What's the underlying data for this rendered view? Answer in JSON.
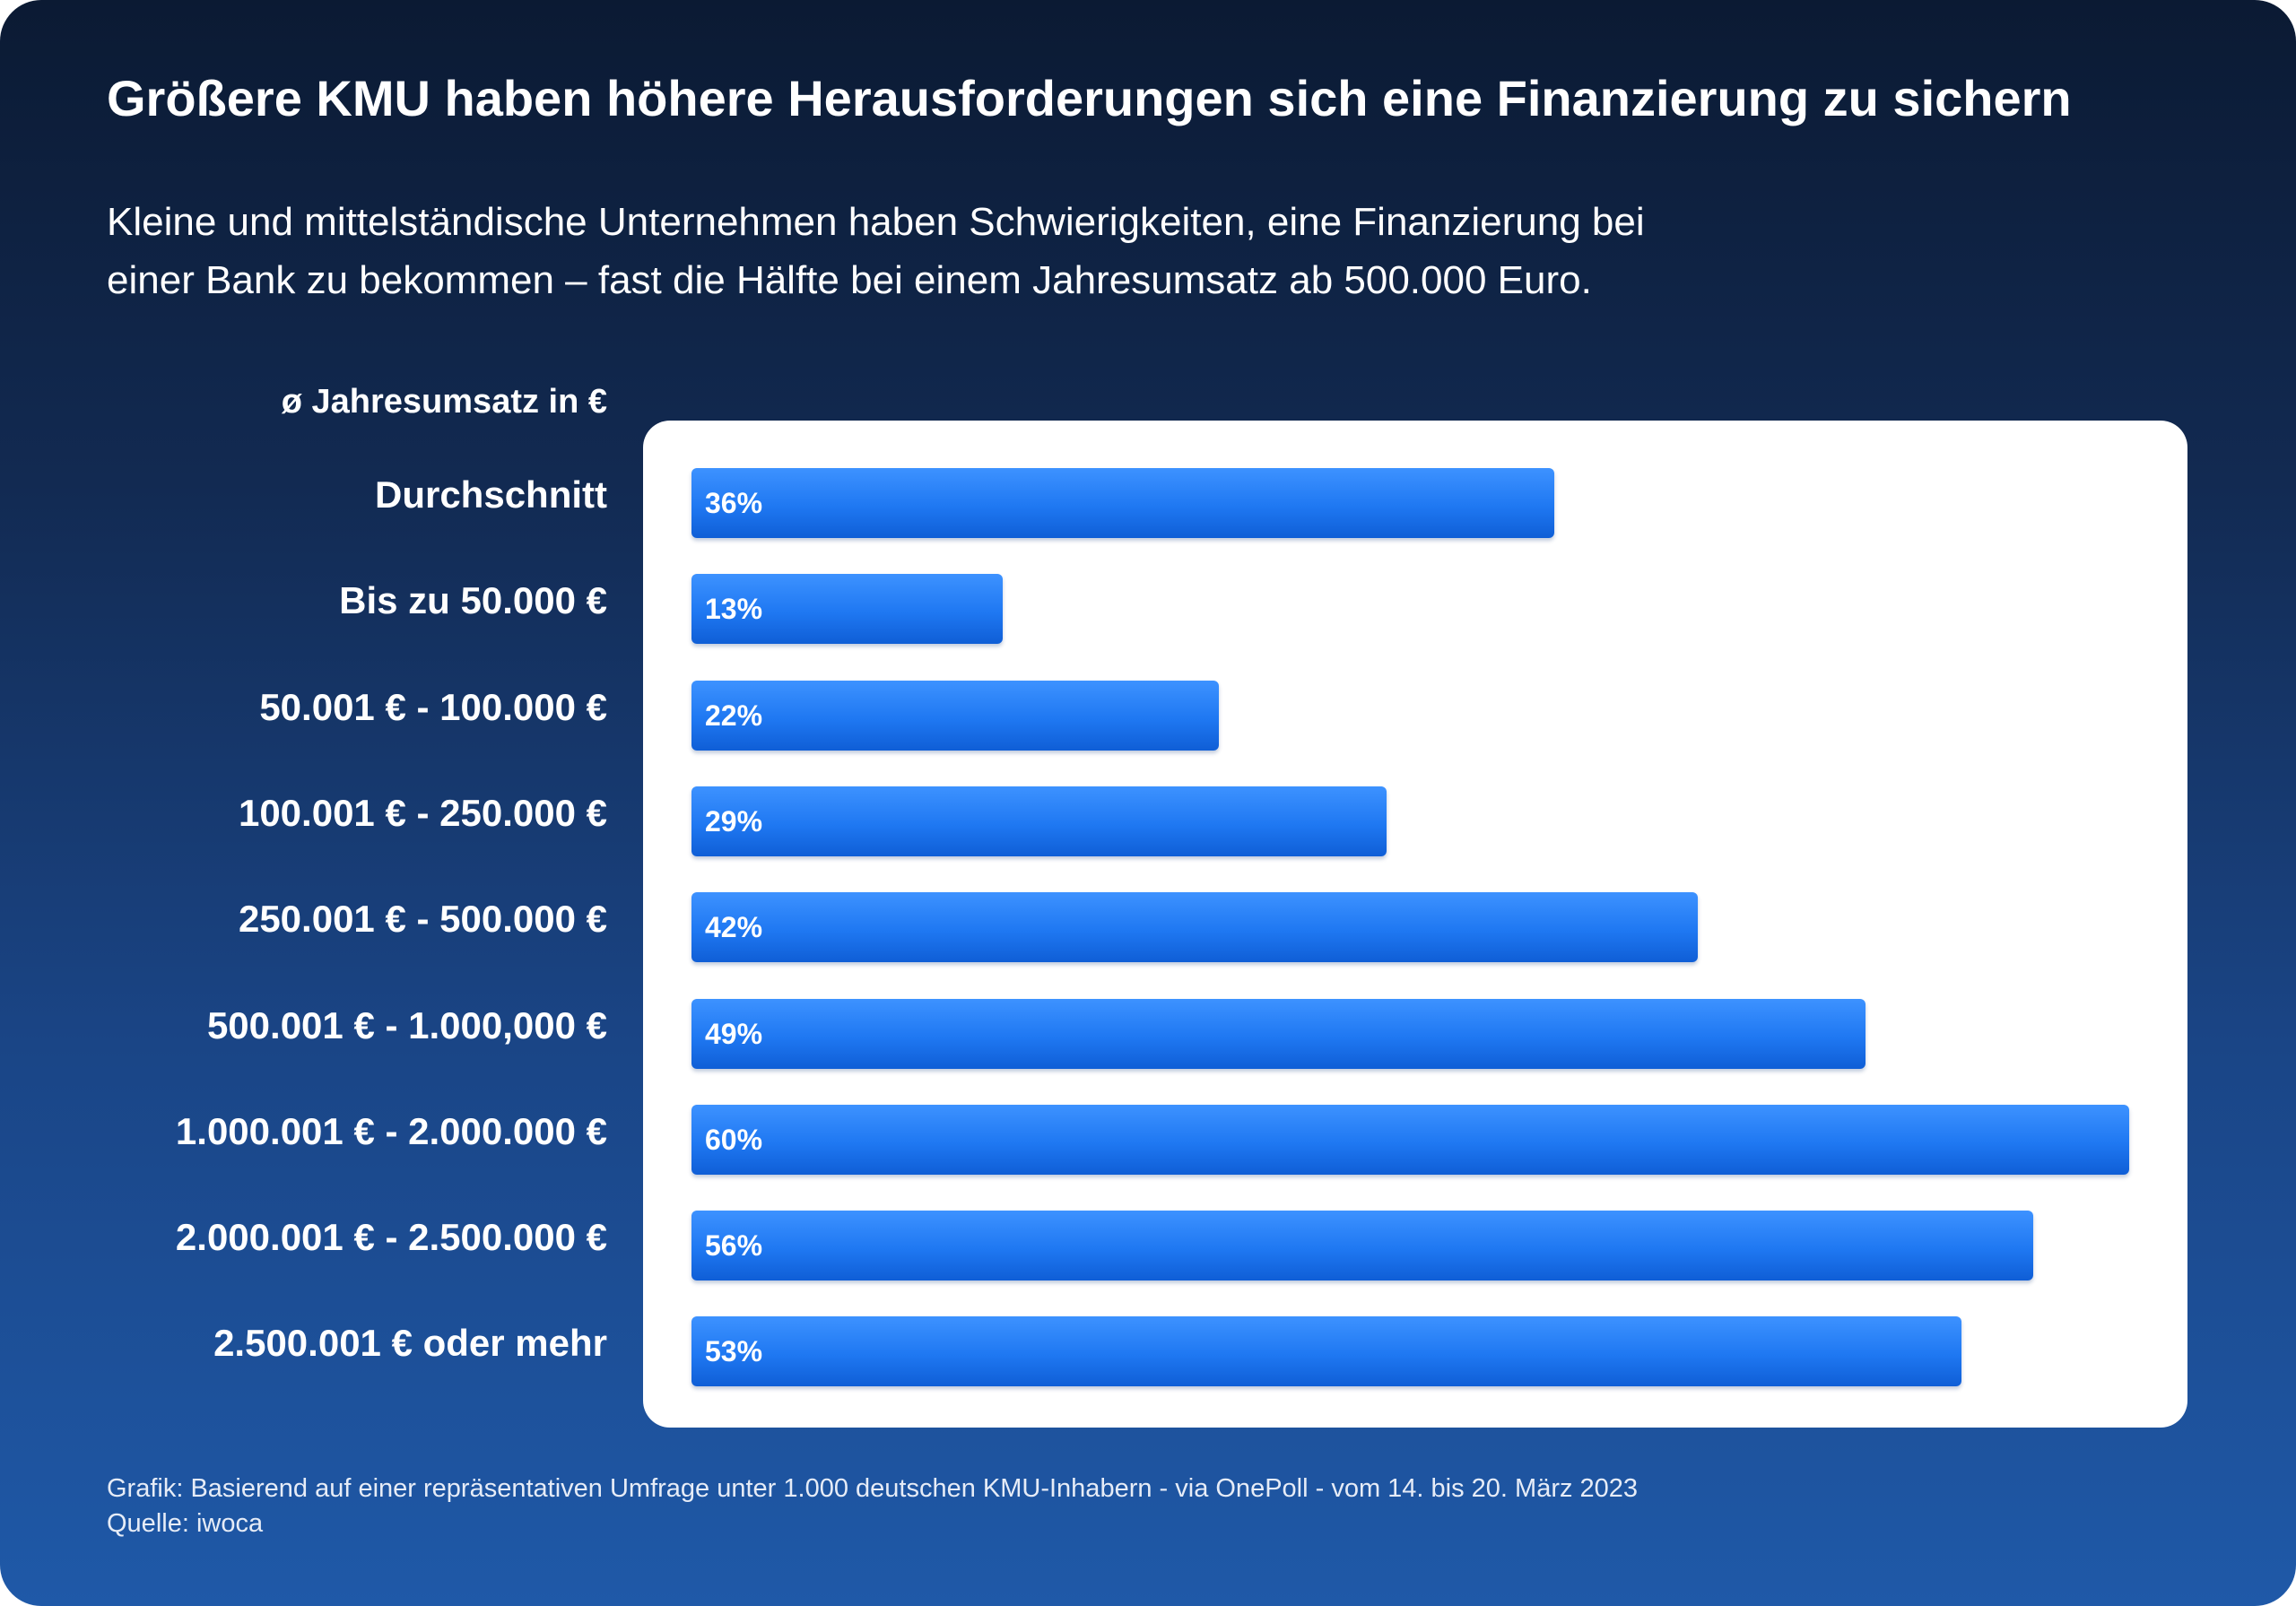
{
  "title": "Größere KMU haben höhere Herausforderungen sich eine Finanzierung zu sichern",
  "subtitle": [
    "Kleine und mittelständische Unternehmen haben Schwierigkeiten, eine Finanzierung bei",
    "einer Bank zu bekommen – fast die Hälfte bei einem Jahresumsatz ab 500.000 Euro."
  ],
  "footnote": [
    "Grafik: Basierend auf einer repräsentativen Umfrage unter 1.000 deutschen KMU-Inhabern - via OnePoll - vom 14. bis 20. März 2023",
    "Quelle: iwoca"
  ],
  "colors": {
    "background_top": "#0b1a33",
    "background_bottom": "#1f59a8",
    "panel": "#ffffff",
    "bar": "#1f78f2",
    "text": "#ffffff"
  },
  "chart_data": {
    "type": "bar",
    "orientation": "horizontal",
    "ylabel": "ø Jahresumsatz in €",
    "categories": [
      "Durchschnitt",
      "Bis zu 50.000 €",
      "50.001 € - 100.000 €",
      "100.001 € - 250.000 €",
      "250.001 € - 500.000 €",
      "500.001 € - 1.000,000 €",
      "1.000.001 € - 2.000.000 €",
      "2.000.001 € - 2.500.000 €",
      "2.500.001 € oder mehr"
    ],
    "values": [
      36,
      13,
      22,
      29,
      42,
      49,
      60,
      56,
      53
    ],
    "value_labels": [
      "36%",
      "13%",
      "22%",
      "29%",
      "42%",
      "49%",
      "60%",
      "56%",
      "53%"
    ],
    "unit": "%",
    "xlim": [
      0,
      60
    ],
    "grid": false,
    "legend": "none"
  }
}
